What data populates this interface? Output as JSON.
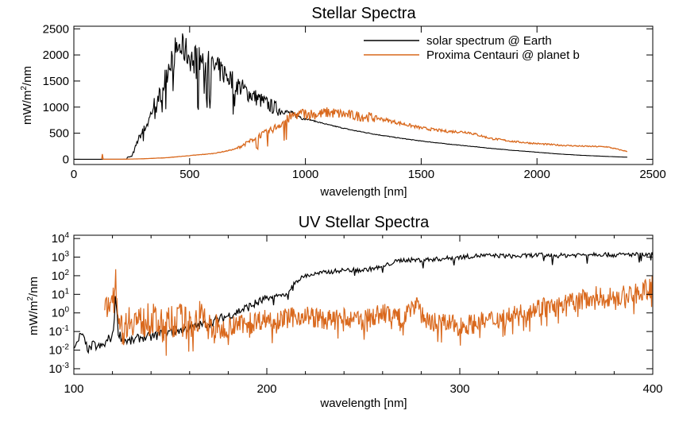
{
  "chart_data": [
    {
      "type": "line",
      "title": "Stellar Spectra",
      "xlabel": "wavelength [nm]",
      "ylabel": "mW/m²/nm",
      "ylabel_parts": [
        "mW/m",
        "2",
        "/nm"
      ],
      "xlim": [
        0,
        2500
      ],
      "ylim": [
        -100,
        2550
      ],
      "xticks": [
        0,
        500,
        1000,
        1500,
        2000,
        2500
      ],
      "yticks": [
        0,
        500,
        1000,
        1500,
        2000,
        2500
      ],
      "legend_position": "top-right",
      "grid": false,
      "series": [
        {
          "name": "solar spectrum @ Earth",
          "color": "#000000",
          "x": [
            200,
            250,
            280,
            300,
            320,
            350,
            380,
            400,
            420,
            450,
            480,
            500,
            550,
            600,
            650,
            700,
            750,
            800,
            850,
            900,
            950,
            1000,
            1100,
            1200,
            1300,
            1400,
            1500,
            1600,
            1700,
            1800,
            1900,
            2000,
            2100,
            2200,
            2300,
            2390
          ],
          "y": [
            0,
            60,
            400,
            550,
            700,
            1100,
            1300,
            1650,
            1950,
            2150,
            2100,
            1950,
            1900,
            1780,
            1650,
            1450,
            1280,
            1150,
            1020,
            930,
            860,
            780,
            660,
            560,
            480,
            410,
            350,
            300,
            255,
            210,
            170,
            135,
            100,
            75,
            55,
            40
          ]
        },
        {
          "name": "Proxima Centauri @ planet b",
          "color": "#d9681c",
          "x": [
            120,
            122,
            124,
            200,
            300,
            400,
            500,
            600,
            650,
            700,
            750,
            800,
            850,
            900,
            950,
            1000,
            1050,
            1100,
            1200,
            1300,
            1400,
            1500,
            1600,
            1700,
            1800,
            1900,
            2000,
            2100,
            2200,
            2300,
            2390
          ],
          "y": [
            0,
            260,
            0,
            0,
            10,
            30,
            70,
            110,
            150,
            200,
            320,
            450,
            550,
            700,
            850,
            880,
            860,
            900,
            840,
            800,
            700,
            600,
            540,
            520,
            400,
            340,
            300,
            270,
            250,
            240,
            150
          ]
        }
      ]
    },
    {
      "type": "line",
      "title": "UV Stellar Spectra",
      "xlabel": "wavelength [nm]",
      "ylabel": "mW/m²/nm",
      "ylabel_parts": [
        "mW/m",
        "2",
        "/nm"
      ],
      "xlim": [
        100,
        400
      ],
      "ylim": [
        0.0005,
        15000
      ],
      "yscale": "log",
      "xticks": [
        100,
        200,
        300,
        400
      ],
      "yticks": [
        {
          "value": 0.001,
          "base": "10",
          "exp": "-3"
        },
        {
          "value": 0.01,
          "base": "10",
          "exp": "-2"
        },
        {
          "value": 0.1,
          "base": "10",
          "exp": "-1"
        },
        {
          "value": 1,
          "base": "10",
          "exp": "0"
        },
        {
          "value": 10,
          "base": "10",
          "exp": "1"
        },
        {
          "value": 100,
          "base": "10",
          "exp": "2"
        },
        {
          "value": 1000,
          "base": "10",
          "exp": "3"
        },
        {
          "value": 10000,
          "base": "10",
          "exp": "4"
        }
      ],
      "grid": false,
      "series": [
        {
          "name": "solar spectrum @ Earth",
          "color": "#000000",
          "x": [
            100,
            102,
            103,
            104,
            106,
            108,
            110,
            112,
            114,
            116,
            118,
            120,
            121,
            121.6,
            122,
            123,
            125,
            128,
            130,
            135,
            140,
            150,
            160,
            170,
            180,
            190,
            200,
            210,
            215,
            220,
            230,
            240,
            250,
            260,
            265,
            270,
            280,
            290,
            300,
            310,
            320,
            330,
            340,
            350,
            360,
            370,
            380,
            390,
            398,
            400
          ],
          "y": [
            0.02,
            0.02,
            0.05,
            0.08,
            0.02,
            0.01,
            0.02,
            0.015,
            0.015,
            0.02,
            0.04,
            0.05,
            0.5,
            25,
            2,
            0.1,
            0.04,
            0.03,
            0.03,
            0.05,
            0.05,
            0.1,
            0.15,
            0.3,
            0.7,
            2,
            6,
            10,
            50,
            100,
            150,
            200,
            200,
            300,
            500,
            700,
            700,
            800,
            1000,
            1200,
            1200,
            1100,
            1300,
            1200,
            1300,
            1500,
            1300,
            1400,
            1300,
            1500
          ]
        },
        {
          "name": "Proxima Centauri @ planet b",
          "color": "#d9681c",
          "x": [
            116,
            118,
            119,
            120,
            121,
            121.6,
            122,
            123,
            124,
            126,
            128,
            130,
            135,
            140,
            145,
            150,
            155,
            160,
            165,
            168,
            170,
            175,
            180,
            190,
            200,
            210,
            220,
            230,
            240,
            250,
            260,
            270,
            278,
            280,
            282,
            290,
            300,
            310,
            320,
            330,
            340,
            350,
            360,
            370,
            380,
            390,
            398,
            400
          ],
          "y": [
            2,
            2,
            5,
            10,
            30,
            300,
            10,
            1,
            0.3,
            0.1,
            0.5,
            0.5,
            0.3,
            0.5,
            0.2,
            0.3,
            0.5,
            0.2,
            0.7,
            0.4,
            0.2,
            0.1,
            0.2,
            0.3,
            0.5,
            0.5,
            0.8,
            0.4,
            0.5,
            0.4,
            1,
            0.5,
            5,
            1,
            0.4,
            0.3,
            0.2,
            0.3,
            0.5,
            0.8,
            2,
            2,
            4,
            8,
            7,
            10,
            20,
            40
          ]
        }
      ]
    }
  ]
}
